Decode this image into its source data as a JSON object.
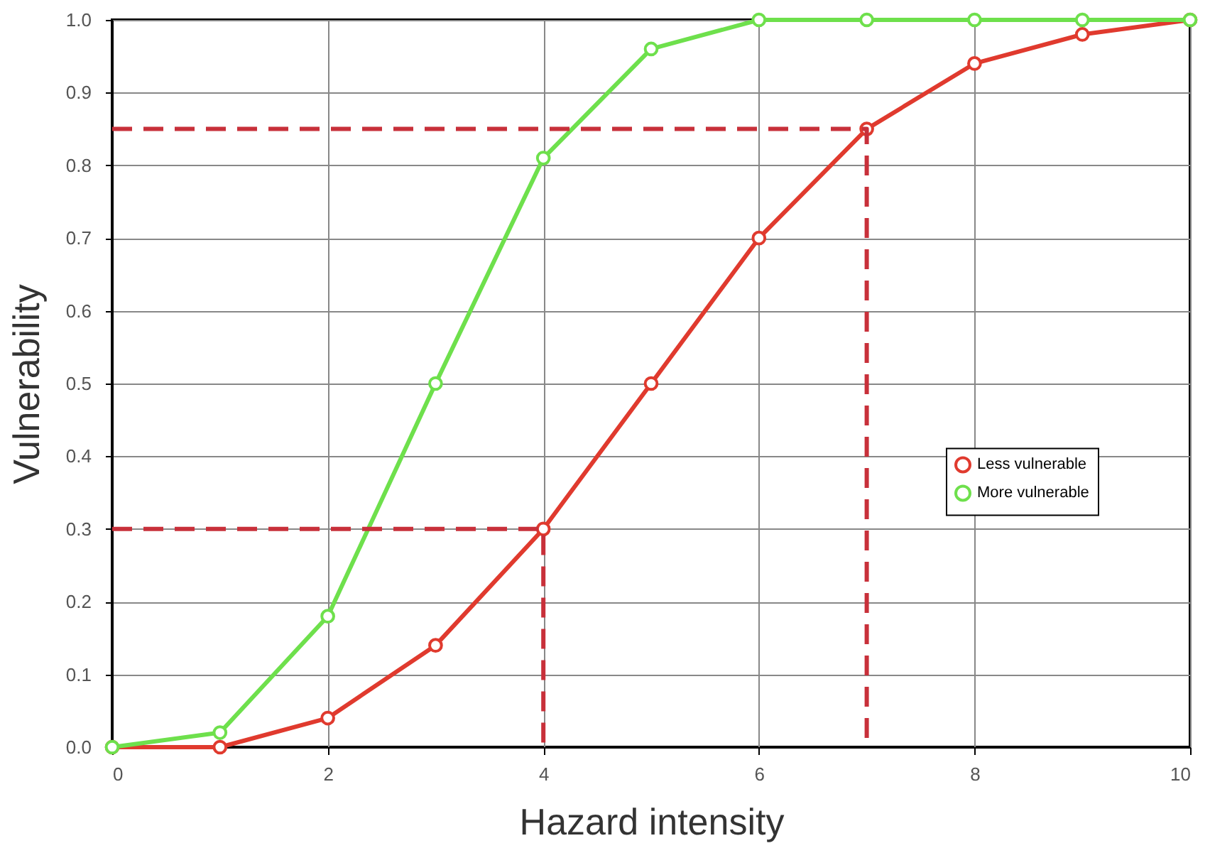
{
  "chart_data": {
    "type": "line",
    "xlabel": "Hazard intensity",
    "ylabel": "Vulnerability",
    "x": [
      0,
      1,
      2,
      3,
      4,
      5,
      6,
      7,
      8,
      9,
      10
    ],
    "series": [
      {
        "name": "Less vulnerable",
        "color": "#e03a2e",
        "values": [
          0.0,
          0.0,
          0.04,
          0.14,
          0.3,
          0.5,
          0.7,
          0.85,
          0.94,
          0.98,
          1.0
        ]
      },
      {
        "name": "More vulnerable",
        "color": "#6ee04c",
        "values": [
          0.0,
          0.02,
          0.18,
          0.5,
          0.81,
          0.96,
          1.0,
          1.0,
          1.0,
          1.0,
          1.0
        ]
      },
      {
        "color": "#c8303a",
        "x": [
          0,
          7,
          7
        ],
        "values": [
          0.85,
          0.85,
          0.0
        ],
        "marker": "none",
        "line_style": "dashed"
      },
      {
        "color": "#c8303a",
        "x": [
          0,
          4,
          4
        ],
        "values": [
          0.3,
          0.3,
          0.0
        ],
        "marker": "none",
        "line_style": "dashed"
      }
    ],
    "xlim": [
      0,
      10
    ],
    "xticks": [
      0,
      2,
      4,
      6,
      8,
      10
    ],
    "ylim": [
      0,
      1.0
    ],
    "yticks": [
      {
        "value": 0,
        "label": "0.0"
      },
      0.1,
      0.2,
      0.3,
      0.4,
      0.5,
      0.6,
      0.7,
      0.8,
      0.9,
      {
        "value": 1.0,
        "label": "1.0"
      }
    ],
    "grid": true,
    "legend": "right",
    "marker": "circle",
    "line_style": "solid"
  }
}
